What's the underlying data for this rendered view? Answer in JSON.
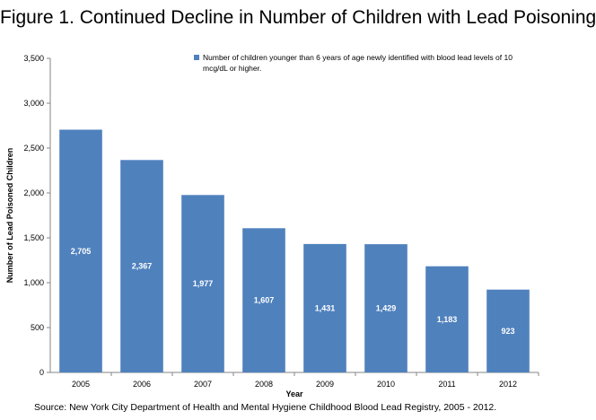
{
  "figure": {
    "title": "Figure 1.  Continued Decline in Number of Children with Lead Poisoning",
    "source": "Source: New York City Department of Health and Mental Hygiene Childhood Blood Lead Registry, 2005 - 2012."
  },
  "chart_data": {
    "type": "bar",
    "categories": [
      "2005",
      "2006",
      "2007",
      "2008",
      "2009",
      "2010",
      "2011",
      "2012"
    ],
    "values": [
      2705,
      2367,
      1977,
      1607,
      1431,
      1429,
      1183,
      923
    ],
    "data_labels": [
      "2,705",
      "2,367",
      "1,977",
      "1,607",
      "1,431",
      "1,429",
      "1,183",
      "923"
    ],
    "xlabel": "Year",
    "ylabel": "Number of Lead Poisoned Children",
    "ylim": [
      0,
      3500
    ],
    "yticks": [
      0,
      500,
      1000,
      1500,
      2000,
      2500,
      3000,
      3500
    ],
    "ytick_labels": [
      "0",
      "500",
      "1,000",
      "1,500",
      "2,000",
      "2,500",
      "3,000",
      "3,500"
    ],
    "legend": {
      "placement": "top-right",
      "label": "Number of children younger than 6 years of age newly identified with blood lead levels of 10 mcg/dL or higher."
    },
    "grid": false,
    "bar_color": "#4f81bd",
    "label_color": "#ffffff"
  }
}
